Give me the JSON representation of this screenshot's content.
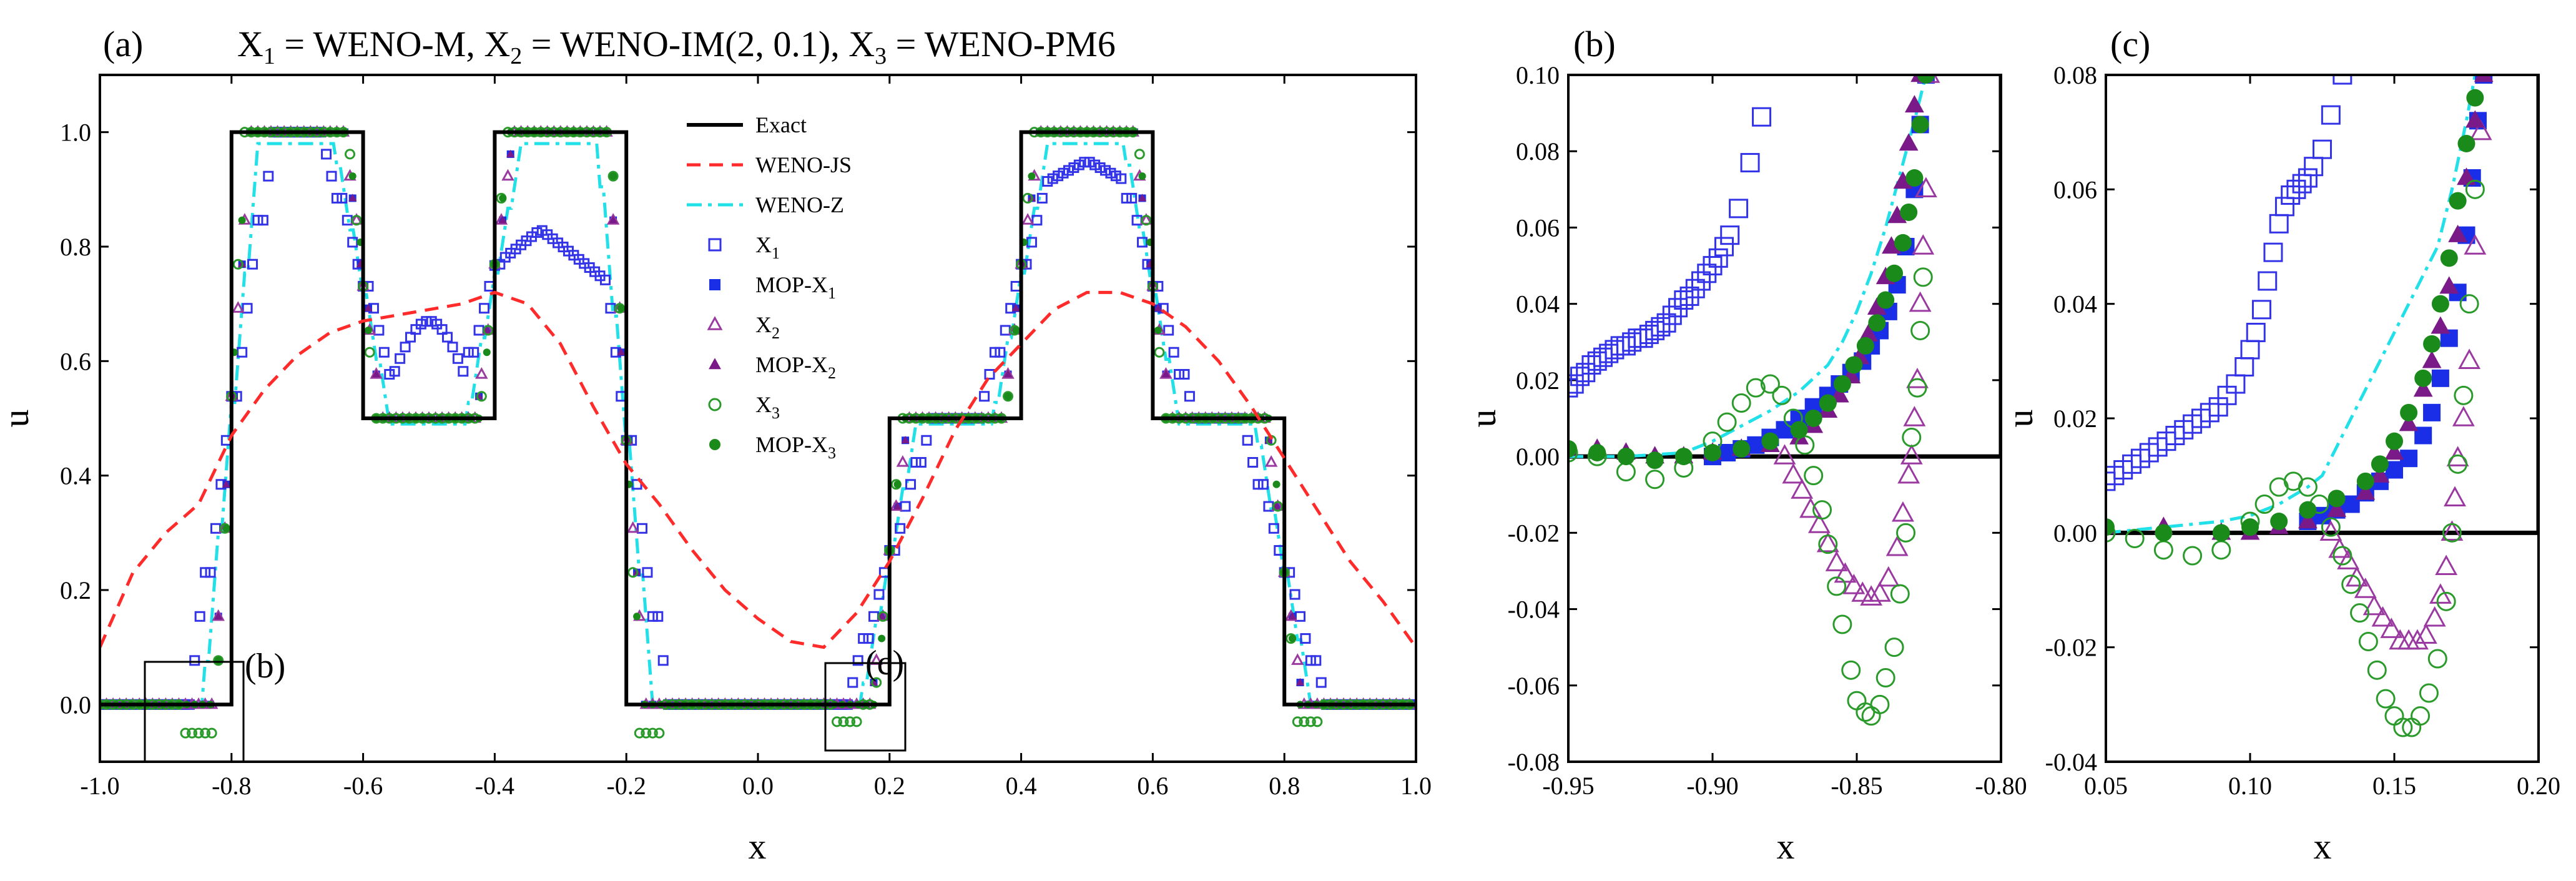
{
  "chart_data": [
    {
      "id": "a",
      "type": "line",
      "panel_label": "(a)",
      "title_parts": {
        "x1": "X",
        "x1_sub": "1",
        "x1_val": " = WENO-M, ",
        "x2": "X",
        "x2_sub": "2",
        "x2_val": " = WENO-IM(2, 0.1), ",
        "x3": "X",
        "x3_sub": "3",
        "x3_val": " = WENO-PM6"
      },
      "xlabel": "x",
      "ylabel": "u",
      "xlim": [
        -1.0,
        1.0
      ],
      "ylim": [
        -0.1,
        1.1
      ],
      "xticks": [
        "-1.0",
        "-0.8",
        "-0.6",
        "-0.4",
        "-0.2",
        "0.0",
        "0.2",
        "0.4",
        "0.6",
        "0.8",
        "1.0"
      ],
      "yticks": [
        "0.0",
        "0.2",
        "0.4",
        "0.6",
        "0.8",
        "1.0"
      ],
      "inset_labels": [
        "(b)",
        "(c)"
      ],
      "legend": [
        {
          "label": "Exact",
          "sub": "",
          "style": "solid-black"
        },
        {
          "label": "WENO-JS",
          "sub": "",
          "style": "dash-red"
        },
        {
          "label": "WENO-Z",
          "sub": "",
          "style": "dashdot-cyan"
        },
        {
          "label": "X",
          "sub": "1",
          "style": "open-square-blue"
        },
        {
          "label": "MOP-X",
          "sub": "1",
          "style": "filled-square-blue"
        },
        {
          "label": "X",
          "sub": "2",
          "style": "open-triangle-purple"
        },
        {
          "label": "MOP-X",
          "sub": "2",
          "style": "filled-triangle-purple"
        },
        {
          "label": "X",
          "sub": "3",
          "style": "open-circle-green"
        },
        {
          "label": "MOP-X",
          "sub": "3",
          "style": "filled-circle-green"
        }
      ],
      "series": [
        {
          "name": "Exact",
          "x": [
            -1.0,
            -0.8,
            -0.8,
            -0.6,
            -0.6,
            -0.4,
            -0.4,
            -0.2,
            -0.2,
            0.2,
            0.2,
            0.4,
            0.4,
            0.6,
            0.6,
            0.8,
            0.8,
            1.0
          ],
          "y": [
            0,
            0,
            1,
            1,
            0.5,
            0.5,
            1,
            1,
            0,
            0,
            0.5,
            0.5,
            1,
            1,
            0.5,
            0.5,
            0,
            0
          ]
        },
        {
          "name": "WENO-JS",
          "x": [
            -1.0,
            -0.95,
            -0.9,
            -0.85,
            -0.8,
            -0.75,
            -0.7,
            -0.65,
            -0.6,
            -0.55,
            -0.5,
            -0.45,
            -0.4,
            -0.35,
            -0.3,
            -0.25,
            -0.2,
            -0.15,
            -0.1,
            -0.05,
            0.0,
            0.05,
            0.1,
            0.15,
            0.2,
            0.25,
            0.3,
            0.35,
            0.4,
            0.45,
            0.5,
            0.55,
            0.6,
            0.65,
            0.7,
            0.75,
            0.8,
            0.85,
            0.9,
            0.95,
            1.0
          ],
          "y": [
            0.1,
            0.23,
            0.3,
            0.35,
            0.47,
            0.55,
            0.61,
            0.65,
            0.67,
            0.68,
            0.69,
            0.7,
            0.72,
            0.7,
            0.63,
            0.52,
            0.42,
            0.35,
            0.27,
            0.2,
            0.15,
            0.11,
            0.1,
            0.16,
            0.25,
            0.36,
            0.48,
            0.57,
            0.63,
            0.69,
            0.72,
            0.72,
            0.7,
            0.66,
            0.6,
            0.52,
            0.43,
            0.34,
            0.25,
            0.18,
            0.1
          ]
        }
      ]
    },
    {
      "id": "b",
      "type": "scatter",
      "panel_label": "(b)",
      "xlabel": "x",
      "ylabel": "u",
      "xlim": [
        -0.95,
        -0.8
      ],
      "ylim": [
        -0.08,
        0.1
      ],
      "xticks": [
        "-0.95",
        "-0.90",
        "-0.85",
        "-0.80"
      ],
      "yticks": [
        "-0.08",
        "-0.06",
        "-0.04",
        "-0.02",
        "0.00",
        "0.02",
        "0.04",
        "0.06",
        "0.08",
        "0.10"
      ],
      "series": [
        {
          "name": "Exact",
          "x": [
            -0.95,
            -0.8,
            -0.8
          ],
          "y": [
            0,
            0,
            0.1
          ]
        },
        {
          "name": "WENO-Z",
          "x": [
            -0.95,
            -0.93,
            -0.91,
            -0.9,
            -0.89,
            -0.88,
            -0.87,
            -0.86,
            -0.855,
            -0.85,
            -0.845,
            -0.84,
            -0.835,
            -0.83,
            -0.826
          ],
          "y": [
            0.0,
            0.0,
            0.001,
            0.004,
            0.008,
            0.012,
            0.017,
            0.024,
            0.03,
            0.038,
            0.048,
            0.06,
            0.074,
            0.088,
            0.1
          ]
        },
        {
          "name": "X1",
          "x": [
            -0.95,
            -0.948,
            -0.946,
            -0.944,
            -0.942,
            -0.94,
            -0.938,
            -0.936,
            -0.934,
            -0.932,
            -0.93,
            -0.928,
            -0.926,
            -0.924,
            -0.922,
            -0.92,
            -0.918,
            -0.916,
            -0.914,
            -0.912,
            -0.91,
            -0.908,
            -0.906,
            -0.904,
            -0.902,
            -0.9,
            -0.898,
            -0.896,
            -0.894,
            -0.891,
            -0.887,
            -0.883
          ],
          "y": [
            0.018,
            0.019,
            0.021,
            0.022,
            0.024,
            0.025,
            0.026,
            0.027,
            0.028,
            0.029,
            0.029,
            0.03,
            0.031,
            0.031,
            0.032,
            0.033,
            0.034,
            0.035,
            0.037,
            0.039,
            0.041,
            0.042,
            0.044,
            0.046,
            0.048,
            0.05,
            0.052,
            0.055,
            0.058,
            0.065,
            0.077,
            0.089
          ]
        },
        {
          "name": "MOP-X1",
          "x": [
            -0.9,
            -0.895,
            -0.89,
            -0.885,
            -0.88,
            -0.875,
            -0.87,
            -0.865,
            -0.86,
            -0.856,
            -0.852,
            -0.848,
            -0.845,
            -0.842,
            -0.839,
            -0.836,
            -0.833,
            -0.83,
            -0.828,
            -0.826
          ],
          "y": [
            0.0,
            0.001,
            0.002,
            0.003,
            0.005,
            0.007,
            0.01,
            0.013,
            0.016,
            0.019,
            0.022,
            0.025,
            0.029,
            0.033,
            0.038,
            0.045,
            0.055,
            0.07,
            0.087,
            0.1
          ]
        },
        {
          "name": "X2",
          "x": [
            -0.875,
            -0.872,
            -0.869,
            -0.866,
            -0.863,
            -0.86,
            -0.857,
            -0.854,
            -0.851,
            -0.848,
            -0.845,
            -0.842,
            -0.839,
            -0.836,
            -0.834,
            -0.832,
            -0.831,
            -0.83,
            -0.829,
            -0.828,
            -0.827,
            -0.826,
            -0.825
          ],
          "y": [
            0.0,
            -0.005,
            -0.009,
            -0.014,
            -0.018,
            -0.023,
            -0.028,
            -0.031,
            -0.034,
            -0.036,
            -0.037,
            -0.036,
            -0.032,
            -0.024,
            -0.015,
            -0.005,
            0.0,
            0.01,
            0.02,
            0.04,
            0.055,
            0.07,
            0.1
          ]
        },
        {
          "name": "MOP-X2",
          "x": [
            -0.95,
            -0.94,
            -0.93,
            -0.92,
            -0.91,
            -0.9,
            -0.89,
            -0.88,
            -0.87,
            -0.865,
            -0.86,
            -0.856,
            -0.852,
            -0.849,
            -0.846,
            -0.843,
            -0.84,
            -0.838,
            -0.836,
            -0.834,
            -0.832,
            -0.83,
            -0.828
          ],
          "y": [
            0.002,
            0.002,
            0.001,
            0.0,
            0.0,
            0.001,
            0.002,
            0.003,
            0.005,
            0.008,
            0.012,
            0.016,
            0.021,
            0.026,
            0.032,
            0.039,
            0.047,
            0.055,
            0.063,
            0.072,
            0.082,
            0.092,
            0.1
          ]
        },
        {
          "name": "X3",
          "x": [
            -0.95,
            -0.94,
            -0.93,
            -0.92,
            -0.91,
            -0.9,
            -0.895,
            -0.89,
            -0.885,
            -0.88,
            -0.876,
            -0.872,
            -0.868,
            -0.865,
            -0.862,
            -0.86,
            -0.857,
            -0.855,
            -0.852,
            -0.85,
            -0.847,
            -0.845,
            -0.842,
            -0.84,
            -0.837,
            -0.835,
            -0.833,
            -0.831,
            -0.829,
            -0.828,
            -0.827
          ],
          "y": [
            0.001,
            0.0,
            -0.004,
            -0.006,
            -0.003,
            0.004,
            0.009,
            0.014,
            0.018,
            0.019,
            0.016,
            0.01,
            0.003,
            -0.005,
            -0.014,
            -0.023,
            -0.034,
            -0.044,
            -0.056,
            -0.064,
            -0.067,
            -0.068,
            -0.065,
            -0.058,
            -0.05,
            -0.036,
            -0.02,
            0.005,
            0.018,
            0.033,
            0.047
          ]
        },
        {
          "name": "MOP-X3",
          "x": [
            -0.95,
            -0.94,
            -0.93,
            -0.92,
            -0.91,
            -0.9,
            -0.89,
            -0.88,
            -0.87,
            -0.865,
            -0.86,
            -0.855,
            -0.851,
            -0.847,
            -0.843,
            -0.84,
            -0.837,
            -0.834,
            -0.832,
            -0.83,
            -0.828,
            -0.826
          ],
          "y": [
            0.002,
            0.001,
            0.0,
            -0.001,
            0.0,
            0.001,
            0.002,
            0.004,
            0.007,
            0.01,
            0.014,
            0.019,
            0.024,
            0.029,
            0.035,
            0.041,
            0.048,
            0.056,
            0.064,
            0.073,
            0.087,
            0.1
          ]
        }
      ]
    },
    {
      "id": "c",
      "type": "scatter",
      "panel_label": "(c)",
      "xlabel": "x",
      "ylabel": "u",
      "xlim": [
        0.05,
        0.2
      ],
      "ylim": [
        -0.04,
        0.08
      ],
      "xticks": [
        "0.05",
        "0.10",
        "0.15",
        "0.20"
      ],
      "yticks": [
        "-0.04",
        "-0.02",
        "0.00",
        "0.02",
        "0.04",
        "0.06",
        "0.08"
      ],
      "series": [
        {
          "name": "Exact",
          "x": [
            0.05,
            0.2,
            0.2
          ],
          "y": [
            0,
            0,
            0.08
          ]
        },
        {
          "name": "WENO-Z",
          "x": [
            0.05,
            0.07,
            0.09,
            0.1,
            0.11,
            0.12,
            0.125,
            0.13,
            0.14,
            0.15,
            0.16,
            0.165,
            0.17,
            0.175,
            0.178
          ],
          "y": [
            0.0,
            0.001,
            0.002,
            0.003,
            0.005,
            0.008,
            0.01,
            0.015,
            0.025,
            0.035,
            0.045,
            0.05,
            0.06,
            0.072,
            0.08
          ]
        },
        {
          "name": "X1",
          "x": [
            0.05,
            0.053,
            0.056,
            0.059,
            0.062,
            0.065,
            0.068,
            0.071,
            0.074,
            0.077,
            0.08,
            0.083,
            0.086,
            0.089,
            0.092,
            0.095,
            0.098,
            0.1,
            0.102,
            0.104,
            0.106,
            0.108,
            0.11,
            0.112,
            0.114,
            0.116,
            0.118,
            0.12,
            0.122,
            0.125,
            0.128,
            0.132
          ],
          "y": [
            0.009,
            0.01,
            0.011,
            0.012,
            0.013,
            0.014,
            0.015,
            0.016,
            0.017,
            0.018,
            0.019,
            0.02,
            0.021,
            0.022,
            0.024,
            0.026,
            0.029,
            0.032,
            0.035,
            0.039,
            0.044,
            0.049,
            0.054,
            0.057,
            0.059,
            0.06,
            0.061,
            0.062,
            0.064,
            0.067,
            0.073,
            0.08
          ]
        },
        {
          "name": "MOP-X1",
          "x": [
            0.12,
            0.125,
            0.13,
            0.135,
            0.14,
            0.145,
            0.15,
            0.155,
            0.16,
            0.163,
            0.166,
            0.169,
            0.172,
            0.175,
            0.177,
            0.179,
            0.181
          ],
          "y": [
            0.002,
            0.003,
            0.004,
            0.005,
            0.007,
            0.009,
            0.011,
            0.013,
            0.017,
            0.021,
            0.027,
            0.034,
            0.042,
            0.052,
            0.062,
            0.072,
            0.08
          ]
        },
        {
          "name": "X2",
          "x": [
            0.128,
            0.131,
            0.134,
            0.137,
            0.14,
            0.143,
            0.146,
            0.149,
            0.152,
            0.155,
            0.158,
            0.161,
            0.164,
            0.166,
            0.168,
            0.17,
            0.171,
            0.172,
            0.174,
            0.176,
            0.178,
            0.18
          ],
          "y": [
            0.0,
            -0.003,
            -0.005,
            -0.008,
            -0.01,
            -0.013,
            -0.015,
            -0.017,
            -0.019,
            -0.019,
            -0.019,
            -0.018,
            -0.015,
            -0.011,
            -0.006,
            0.0,
            0.006,
            0.013,
            0.02,
            0.03,
            0.05,
            0.07
          ]
        },
        {
          "name": "MOP-X2",
          "x": [
            0.05,
            0.07,
            0.09,
            0.1,
            0.11,
            0.12,
            0.13,
            0.14,
            0.145,
            0.15,
            0.155,
            0.16,
            0.163,
            0.166,
            0.169,
            0.172,
            0.175,
            0.178,
            0.181
          ],
          "y": [
            0.001,
            0.001,
            0.0,
            0.0,
            0.001,
            0.002,
            0.004,
            0.007,
            0.01,
            0.014,
            0.019,
            0.025,
            0.03,
            0.036,
            0.043,
            0.052,
            0.062,
            0.072,
            0.08
          ]
        },
        {
          "name": "X3",
          "x": [
            0.05,
            0.06,
            0.07,
            0.08,
            0.09,
            0.1,
            0.105,
            0.11,
            0.115,
            0.12,
            0.124,
            0.128,
            0.132,
            0.135,
            0.138,
            0.141,
            0.144,
            0.147,
            0.15,
            0.153,
            0.156,
            0.159,
            0.162,
            0.165,
            0.168,
            0.17,
            0.172,
            0.174,
            0.176,
            0.178
          ],
          "y": [
            0.0,
            -0.001,
            -0.003,
            -0.004,
            -0.003,
            0.002,
            0.005,
            0.008,
            0.009,
            0.008,
            0.005,
            0.001,
            -0.004,
            -0.009,
            -0.014,
            -0.019,
            -0.024,
            -0.029,
            -0.032,
            -0.034,
            -0.034,
            -0.032,
            -0.028,
            -0.022,
            -0.012,
            0.0,
            0.012,
            0.024,
            0.04,
            0.06
          ]
        },
        {
          "name": "MOP-X3",
          "x": [
            0.05,
            0.07,
            0.09,
            0.1,
            0.11,
            0.12,
            0.13,
            0.14,
            0.145,
            0.15,
            0.155,
            0.16,
            0.163,
            0.166,
            0.169,
            0.172,
            0.175,
            0.178
          ],
          "y": [
            0.001,
            0.0,
            0.0,
            0.001,
            0.002,
            0.004,
            0.006,
            0.009,
            0.012,
            0.016,
            0.021,
            0.027,
            0.033,
            0.04,
            0.048,
            0.058,
            0.068,
            0.076
          ]
        }
      ]
    }
  ],
  "colors": {
    "exact": "#000000",
    "weno_js": "#ff2a2a",
    "weno_z": "#22e0e8",
    "x1": "#3333e8",
    "mop_x1": "#1a2ee8",
    "x2": "#9a3aa0",
    "mop_x2": "#7a1a88",
    "x3": "#2a9a2a",
    "mop_x3": "#1a8a1a"
  }
}
